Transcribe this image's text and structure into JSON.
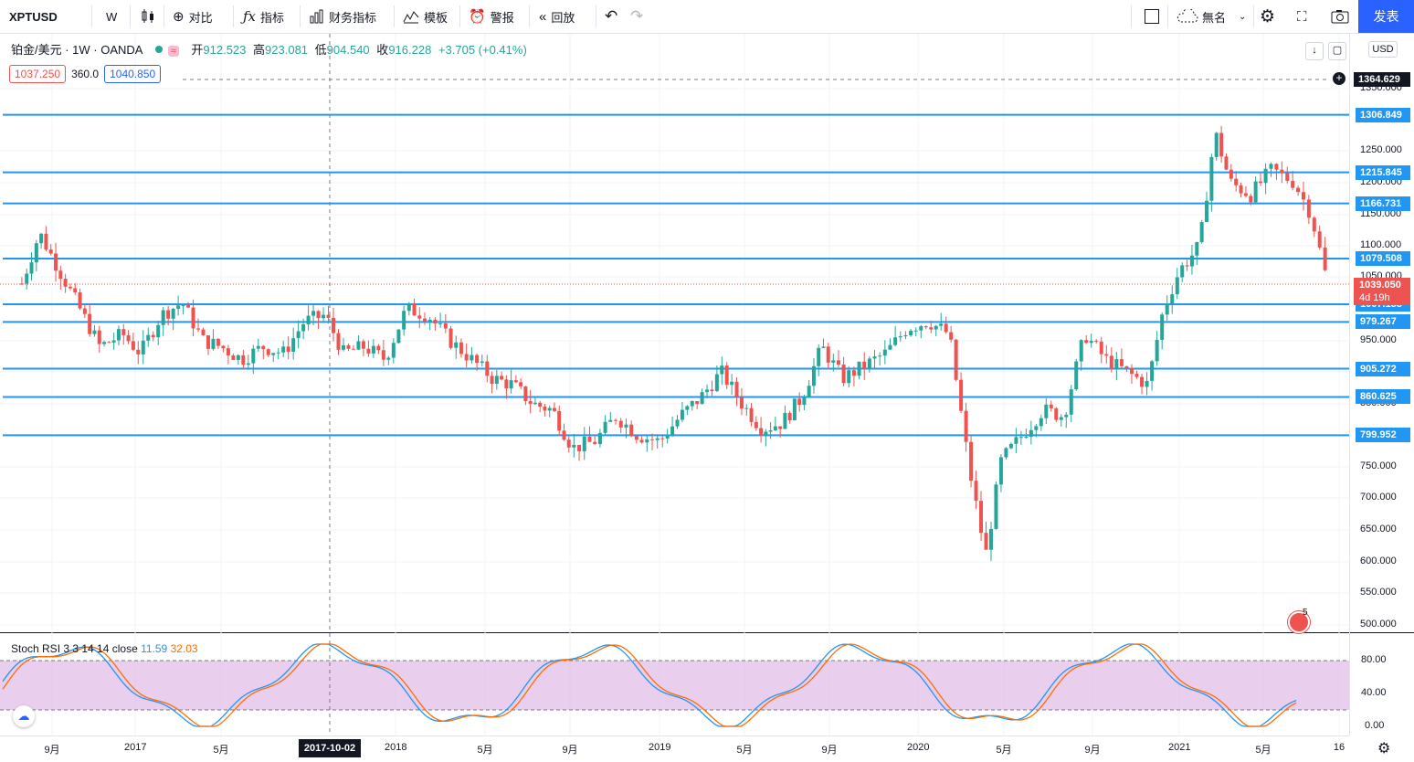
{
  "toolbar": {
    "symbol": "XPTUSD",
    "interval": "W",
    "compare": "对比",
    "indicators": "指标",
    "financials": "财务指标",
    "templates": "模板",
    "alert": "警报",
    "replay": "回放",
    "layout_name": "無名",
    "publish": "发表"
  },
  "legend": {
    "title": "铂金/美元 · 1W · OANDA",
    "open_label": "开",
    "open": "912.523",
    "high_label": "高",
    "high": "923.081",
    "low_label": "低",
    "low": "904.540",
    "close_label": "收",
    "close": "916.228",
    "change": "+3.705 (+0.41%)",
    "bid": "1037.250",
    "spread": "360.0",
    "ask": "1040.850"
  },
  "price_axis": {
    "currency": "USD",
    "ticks": [
      "1350.000",
      "1250.000",
      "1200.000",
      "1150.000",
      "1100.000",
      "1050.000",
      "950.000",
      "900.000",
      "850.000",
      "750.000",
      "700.000",
      "650.000",
      "600.000",
      "550.000",
      "500.000"
    ],
    "crosshair_price": "1364.629",
    "current_price": "1039.050",
    "countdown": "4d 19h"
  },
  "levels": [
    "1306.849",
    "1215.845",
    "1166.731",
    "1079.508",
    "1007.158",
    "979.267",
    "905.272",
    "860.625",
    "799.952"
  ],
  "rsi": {
    "label": "Stoch RSI 3 3 14 14 close",
    "k": "11.59",
    "d": "32.03",
    "ticks": [
      "80.00",
      "40.00",
      "0.00"
    ]
  },
  "time_axis": {
    "labels": [
      "9月",
      "2017",
      "5月",
      "2018",
      "5月",
      "9月",
      "2019",
      "5月",
      "9月",
      "2020",
      "5月",
      "9月",
      "2021",
      "5月",
      "16"
    ],
    "crosshair_date": "2017-10-02"
  },
  "events_badge": "5",
  "colors": {
    "up": "#26a69a",
    "down": "#ef5350",
    "level": "#2196f3",
    "accent": "#2962ff",
    "rsi_band": "#e1bee7"
  },
  "chart_data": {
    "type": "candlestick",
    "symbol": "XPTUSD",
    "interval": "1W",
    "ylim": [
      480,
      1390
    ],
    "horizontal_levels": [
      1306.849,
      1215.845,
      1166.731,
      1079.508,
      1007.158,
      979.267,
      905.272,
      860.625,
      799.952
    ],
    "close_path": [
      [
        2016.55,
        1040
      ],
      [
        2016.62,
        1120
      ],
      [
        2016.7,
        1060
      ],
      [
        2016.78,
        1000
      ],
      [
        2016.86,
        940
      ],
      [
        2016.95,
        960
      ],
      [
        2017.02,
        930
      ],
      [
        2017.1,
        990
      ],
      [
        2017.18,
        1010
      ],
      [
        2017.26,
        950
      ],
      [
        2017.33,
        940
      ],
      [
        2017.41,
        920
      ],
      [
        2017.49,
        940
      ],
      [
        2017.57,
        930
      ],
      [
        2017.65,
        980
      ],
      [
        2017.73,
        990
      ],
      [
        2017.8,
        930
      ],
      [
        2017.88,
        940
      ],
      [
        2017.96,
        920
      ],
      [
        2018.04,
        1000
      ],
      [
        2018.12,
        990
      ],
      [
        2018.2,
        950
      ],
      [
        2018.28,
        920
      ],
      [
        2018.36,
        890
      ],
      [
        2018.44,
        880
      ],
      [
        2018.52,
        850
      ],
      [
        2018.6,
        840
      ],
      [
        2018.68,
        780
      ],
      [
        2018.76,
        790
      ],
      [
        2018.84,
        830
      ],
      [
        2018.92,
        800
      ],
      [
        2019.0,
        790
      ],
      [
        2019.08,
        830
      ],
      [
        2019.16,
        860
      ],
      [
        2019.24,
        900
      ],
      [
        2019.32,
        850
      ],
      [
        2019.4,
        810
      ],
      [
        2019.48,
        820
      ],
      [
        2019.56,
        860
      ],
      [
        2019.64,
        940
      ],
      [
        2019.72,
        890
      ],
      [
        2019.8,
        910
      ],
      [
        2019.88,
        930
      ],
      [
        2019.96,
        970
      ],
      [
        2020.04,
        980
      ],
      [
        2020.12,
        960
      ],
      [
        2020.2,
        740
      ],
      [
        2020.26,
        610
      ],
      [
        2020.32,
        760
      ],
      [
        2020.4,
        800
      ],
      [
        2020.48,
        840
      ],
      [
        2020.56,
        830
      ],
      [
        2020.64,
        960
      ],
      [
        2020.72,
        920
      ],
      [
        2020.8,
        900
      ],
      [
        2020.88,
        880
      ],
      [
        2020.94,
        1000
      ],
      [
        2021.0,
        1060
      ],
      [
        2021.08,
        1100
      ],
      [
        2021.14,
        1280
      ],
      [
        2021.2,
        1200
      ],
      [
        2021.28,
        1180
      ],
      [
        2021.36,
        1220
      ],
      [
        2021.44,
        1200
      ],
      [
        2021.5,
        1150
      ],
      [
        2021.56,
        1039
      ]
    ]
  }
}
